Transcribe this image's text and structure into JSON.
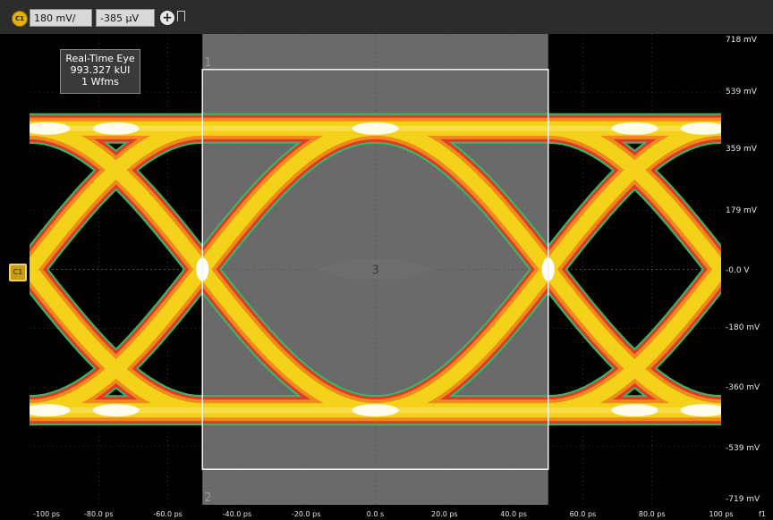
{
  "toolbar": {
    "channel_badge": "C1",
    "vertical_scale": "180 mV/",
    "vertical_offset": "-385 µV",
    "add_symbol": "+"
  },
  "info_box": {
    "line1": "Real-Time Eye",
    "line2": "993.327 kUI",
    "line3": "1 Wfms"
  },
  "regions": {
    "box_label_top": "1",
    "box_label_bottom": "2",
    "mask_label": "3"
  },
  "y_axis_labels": [
    "718 mV",
    "539 mV",
    "359 mV",
    "179 mV",
    "-0.0 V",
    "-180 mV",
    "-360 mV",
    "-539 mV",
    "-719 mV"
  ],
  "x_axis_labels": [
    "-100 ps",
    "-80.0 ps",
    "-60.0 ps",
    "-40.0 ps",
    "-20.0 ps",
    "0.0 s",
    "20.0 ps",
    "40.0 ps",
    "60.0 ps",
    "80.0 ps",
    "100 ps"
  ],
  "x_axis_channel_tag": "f1",
  "offset_marker": "C1",
  "colors": {
    "background": "#000000",
    "grid": "#5a5a5a",
    "eye_outer": "#2bbf6a",
    "eye_red": "#e03a2a",
    "eye_orange": "#f08a1a",
    "eye_yellow": "#f5d21a",
    "eye_core": "#ffffff",
    "box": "#f2f2f2",
    "gray_band": "#6a6a6a",
    "mask": "#6e6e6e"
  }
}
